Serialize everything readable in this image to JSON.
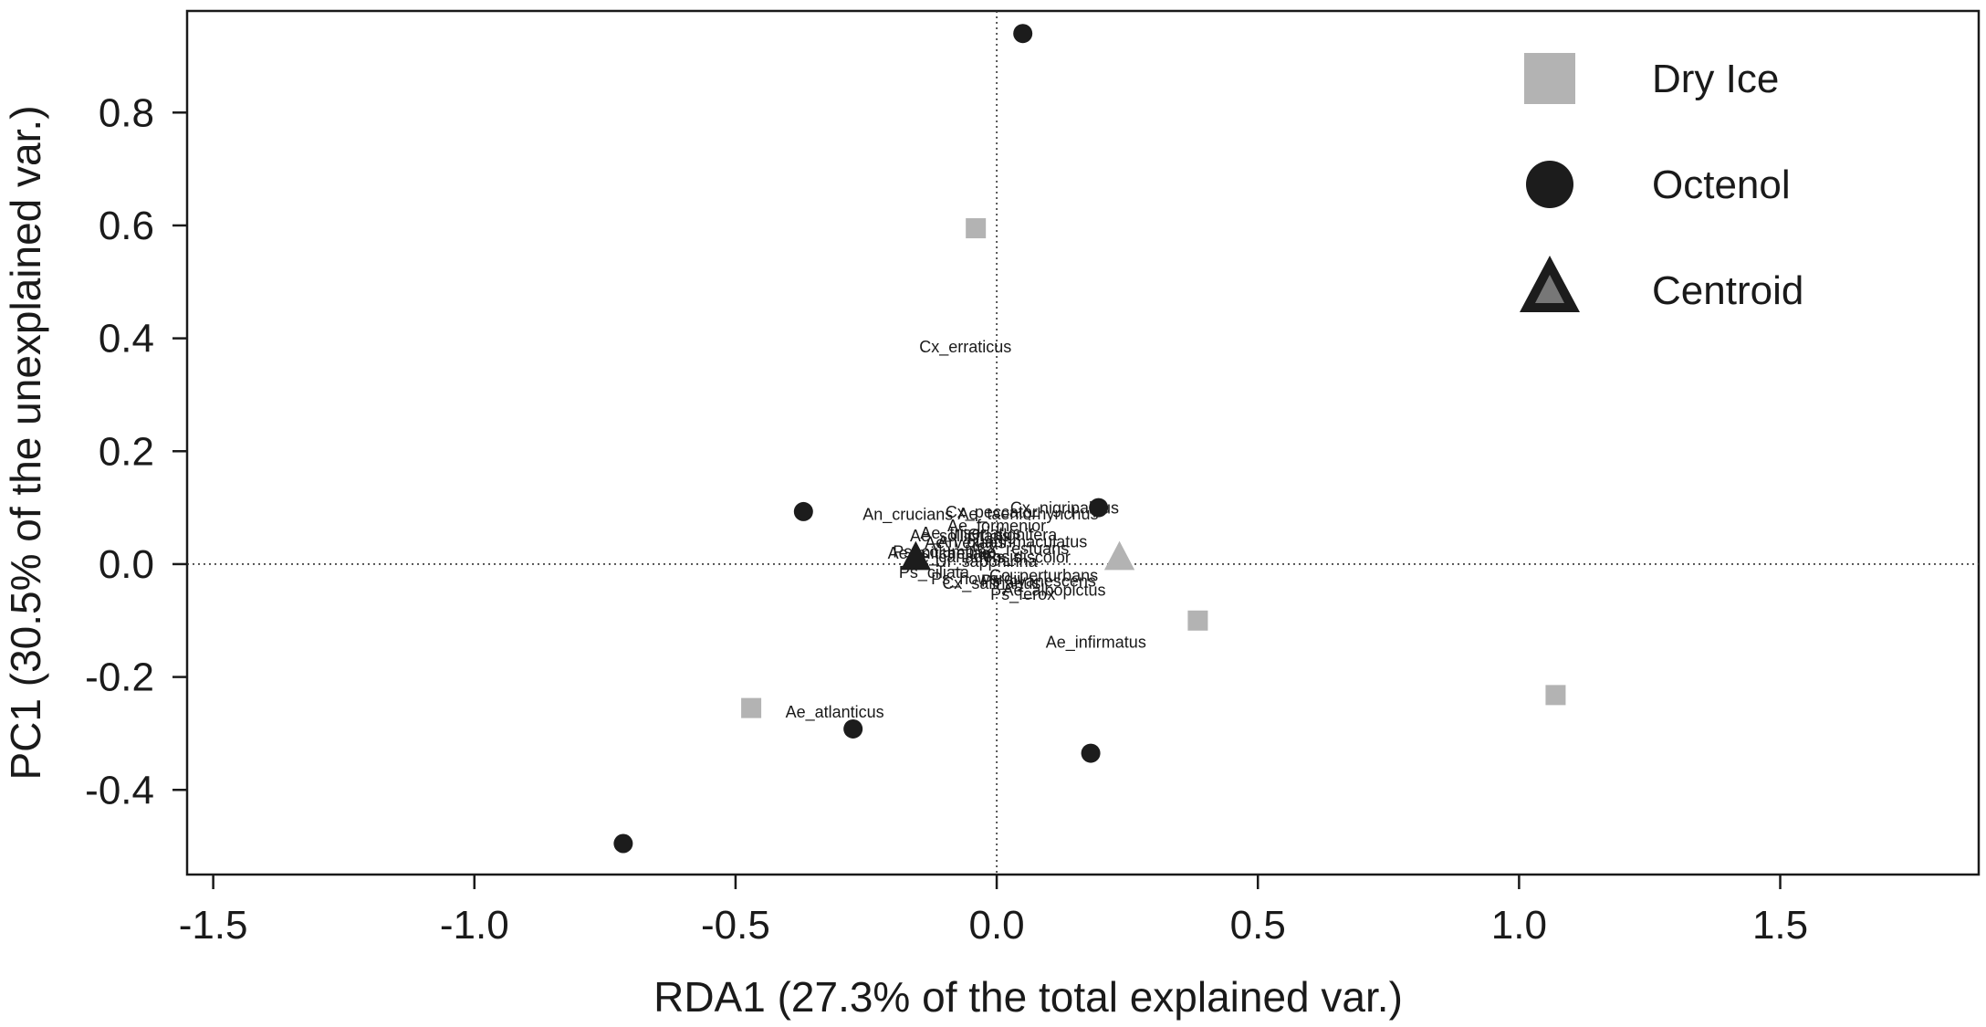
{
  "chart_data": {
    "type": "scatter",
    "xlabel": "RDA1 (27.3% of the total explained var.)",
    "ylabel": "PC1 (30.5% of the unexplained var.)",
    "xlim": [
      -1.55,
      1.88
    ],
    "ylim": [
      -0.55,
      0.98
    ],
    "x_ticks": [
      {
        "value": -1.5,
        "label": "-1.5"
      },
      {
        "value": -1.0,
        "label": "-1.0"
      },
      {
        "value": -0.5,
        "label": "-0.5"
      },
      {
        "value": 0.0,
        "label": "0.0"
      },
      {
        "value": 0.5,
        "label": "0.5"
      },
      {
        "value": 1.0,
        "label": "1.0"
      },
      {
        "value": 1.5,
        "label": "1.5"
      }
    ],
    "y_ticks": [
      {
        "value": -0.4,
        "label": "-0.4"
      },
      {
        "value": -0.2,
        "label": "-0.2"
      },
      {
        "value": 0.0,
        "label": "0.0"
      },
      {
        "value": 0.2,
        "label": "0.2"
      },
      {
        "value": 0.4,
        "label": "0.4"
      },
      {
        "value": 0.6,
        "label": "0.6"
      },
      {
        "value": 0.8,
        "label": "0.8"
      }
    ],
    "reference_lines": {
      "x": 0,
      "y": 0,
      "style": "dotted"
    },
    "grid": false,
    "legend_position": "top-right",
    "colors": {
      "dry_ice": "#b3b3b3",
      "octenol": "#1c1c1c",
      "centroid_edge": "#1c1c1c",
      "centroid_fill_dry": "#b3b3b3",
      "centroid_fill_oct": "#777777"
    },
    "series": [
      {
        "name": "Dry Ice",
        "marker": "square",
        "points": [
          {
            "x": -0.04,
            "y": 0.595
          },
          {
            "x": -0.47,
            "y": -0.255
          },
          {
            "x": 0.385,
            "y": -0.1
          },
          {
            "x": 1.07,
            "y": -0.232
          }
        ]
      },
      {
        "name": "Octenol",
        "marker": "circle",
        "points": [
          {
            "x": 0.05,
            "y": 0.94
          },
          {
            "x": -0.37,
            "y": 0.093
          },
          {
            "x": 0.195,
            "y": 0.1
          },
          {
            "x": -0.275,
            "y": -0.292
          },
          {
            "x": 0.18,
            "y": -0.335
          },
          {
            "x": -0.715,
            "y": -0.495
          }
        ]
      },
      {
        "name": "Centroid",
        "marker": "triangle",
        "points": [
          {
            "x": -0.155,
            "y": 0.008,
            "group": "Octenol"
          },
          {
            "x": 0.235,
            "y": 0.008,
            "group": "Dry Ice"
          }
        ]
      }
    ],
    "legend": [
      {
        "label": "Dry Ice",
        "marker": "square"
      },
      {
        "label": "Octenol",
        "marker": "circle"
      },
      {
        "label": "Centroid",
        "marker": "triangle"
      }
    ],
    "species_labels": [
      {
        "text": "Cx_erraticus",
        "x": -0.06,
        "y": 0.375
      },
      {
        "text": "An_crucians",
        "x": -0.17,
        "y": 0.078
      },
      {
        "text": "Cx_peccator",
        "x": -0.01,
        "y": 0.082
      },
      {
        "text": "Ae_taeniorhynchus",
        "x": 0.06,
        "y": 0.079
      },
      {
        "text": "Cx_nigripalpus",
        "x": 0.13,
        "y": 0.09
      },
      {
        "text": "Ae_formenior",
        "x": 0.0,
        "y": 0.058
      },
      {
        "text": "Ae_sollicitans",
        "x": -0.07,
        "y": 0.04
      },
      {
        "text": "Ae_vexans",
        "x": -0.06,
        "y": 0.028
      },
      {
        "text": "An_quadrimaculatus",
        "x": 0.03,
        "y": 0.03
      },
      {
        "text": "Cx_restuans",
        "x": 0.05,
        "y": 0.018
      },
      {
        "text": "Ps_columbiae",
        "x": -0.1,
        "y": 0.012
      },
      {
        "text": "Ae_canadensis",
        "x": -0.06,
        "y": 0.003
      },
      {
        "text": "Ur_sapphirina",
        "x": -0.02,
        "y": -0.005
      },
      {
        "text": "Ps_ciliata",
        "x": -0.12,
        "y": -0.024
      },
      {
        "text": "Ps_howardii",
        "x": -0.04,
        "y": -0.036
      },
      {
        "text": "Ae_mitchellae",
        "x": -0.11,
        "y": 0.01
      },
      {
        "text": "Cx_salinarius",
        "x": -0.01,
        "y": -0.044
      },
      {
        "text": "Ps_cyanescens",
        "x": 0.08,
        "y": -0.04
      },
      {
        "text": "Ps_ferox",
        "x": 0.05,
        "y": -0.063
      },
      {
        "text": "Ae_albopictus",
        "x": 0.11,
        "y": -0.056
      },
      {
        "text": "Co_perturbans",
        "x": 0.09,
        "y": -0.03
      },
      {
        "text": "Ps_discolor",
        "x": 0.06,
        "y": 0.002
      },
      {
        "text": "Ae_triseriatus",
        "x": -0.05,
        "y": 0.045
      },
      {
        "text": "Or_signifera",
        "x": 0.03,
        "y": 0.042
      },
      {
        "text": "Ae_infirmatus",
        "x": 0.19,
        "y": -0.148
      },
      {
        "text": "Ae_atlanticus",
        "x": -0.31,
        "y": -0.272
      }
    ]
  }
}
